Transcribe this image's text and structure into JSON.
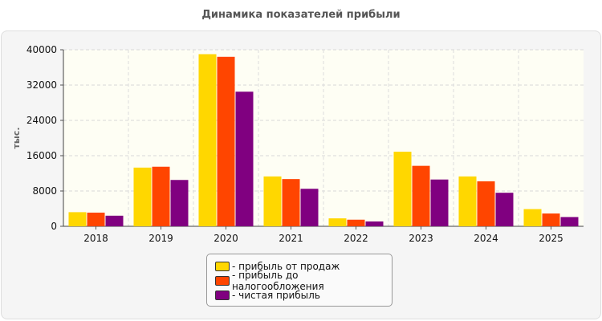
{
  "page": {
    "title": "Динамика показателей прибыли"
  },
  "chart_data": {
    "type": "bar",
    "title": "Динамика показателей прибыли",
    "xlabel": "",
    "ylabel": "тыс.",
    "ylim": [
      0,
      40000
    ],
    "yticks": [
      0,
      8000,
      16000,
      24000,
      32000,
      40000
    ],
    "categories": [
      "2018",
      "2019",
      "2020",
      "2021",
      "2022",
      "2023",
      "2024",
      "2025"
    ],
    "grid": true,
    "legend_position": "bottom",
    "series": [
      {
        "name": "- прибыль от продаж",
        "color": "#FFD700",
        "values": [
          3200,
          13300,
          39000,
          11300,
          1800,
          16900,
          11300,
          3900
        ]
      },
      {
        "name": "- прибыль до налогообложения",
        "color": "#FF4500",
        "values": [
          3100,
          13500,
          38400,
          10700,
          1500,
          13700,
          10200,
          2900
        ]
      },
      {
        "name": "- чистая прибыль",
        "color": "#800080",
        "values": [
          2400,
          10500,
          30500,
          8500,
          1100,
          10600,
          7600,
          2100
        ]
      }
    ]
  }
}
